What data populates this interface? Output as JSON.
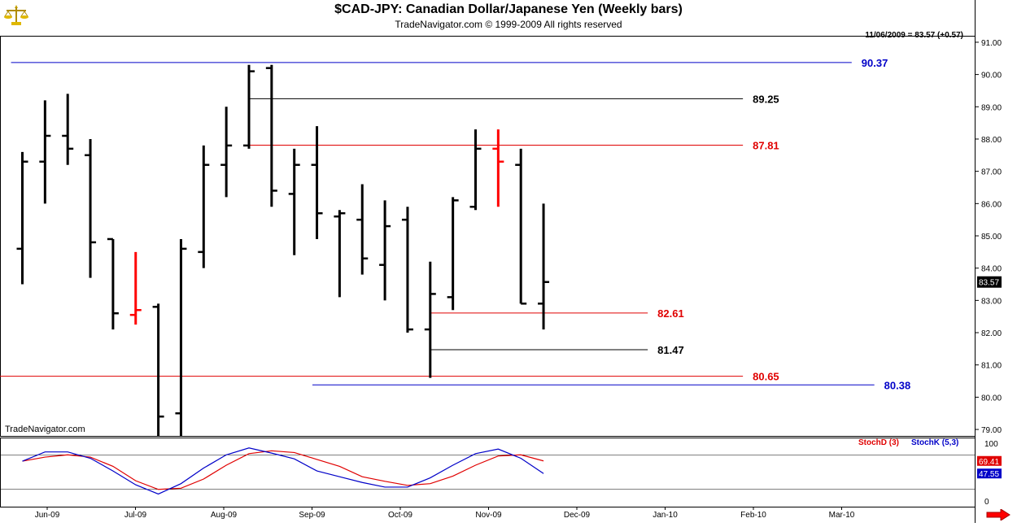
{
  "header": {
    "title": "$CAD-JPY:  Canadian Dollar/Japanese Yen  (Weekly bars)",
    "subtitle": "TradeNavigator.com © 1999-2009 All rights reserved",
    "last_quote": "11/06/2009 = 83.57 (+0.57)"
  },
  "watermark": "TradeNavigator.com",
  "icons": {
    "logo": "scales-logo-icon",
    "scroll_right": "arrow-right-icon"
  },
  "colors": {
    "bar": "#000000",
    "bar_highlight": "#ff0000",
    "level_blue": "#0000c8",
    "level_red": "#e00000",
    "level_black": "#000000",
    "stoch_d": "#e00000",
    "stoch_k": "#0000c8"
  },
  "chart_data": [
    {
      "type": "ohlc",
      "ylim": [
        78.8,
        91.2
      ],
      "y_ticks": [
        "79.00",
        "80.00",
        "81.00",
        "82.00",
        "83.00",
        "84.00",
        "85.00",
        "86.00",
        "87.00",
        "88.00",
        "89.00",
        "90.00",
        "91.00"
      ],
      "x_month_labels": [
        "Jun-09",
        "Jul-09",
        "Aug-09",
        "Sep-09",
        "Oct-09",
        "Nov-09",
        "Dec-09",
        "Jan-10",
        "Feb-10",
        "Mar-10"
      ],
      "last_price_label": "83.57",
      "bars": [
        {
          "week": 0,
          "open": 84.6,
          "high": 87.6,
          "low": 83.5,
          "close": 87.3
        },
        {
          "week": 1,
          "open": 87.3,
          "high": 89.2,
          "low": 86.0,
          "close": 88.1
        },
        {
          "week": 2,
          "open": 88.1,
          "high": 89.4,
          "low": 87.2,
          "close": 87.7
        },
        {
          "week": 3,
          "open": 87.5,
          "high": 88.0,
          "low": 83.7,
          "close": 84.8
        },
        {
          "week": 4,
          "open": 84.9,
          "high": 84.9,
          "low": 82.1,
          "close": 82.6
        },
        {
          "week": 5,
          "open": 82.55,
          "high": 84.5,
          "low": 82.25,
          "close": 82.7,
          "highlight": true
        },
        {
          "week": 6,
          "open": 82.8,
          "high": 82.9,
          "low": 78.8,
          "close": 79.4
        },
        {
          "week": 7,
          "open": 79.5,
          "high": 84.9,
          "low": 78.8,
          "close": 84.6
        },
        {
          "week": 8,
          "open": 84.5,
          "high": 87.8,
          "low": 84.0,
          "close": 87.2
        },
        {
          "week": 9,
          "open": 87.2,
          "high": 89.0,
          "low": 86.2,
          "close": 87.8
        },
        {
          "week": 10,
          "open": 87.8,
          "high": 90.3,
          "low": 87.7,
          "close": 90.1
        },
        {
          "week": 11,
          "open": 90.2,
          "high": 90.3,
          "low": 85.9,
          "close": 86.4
        },
        {
          "week": 12,
          "open": 86.3,
          "high": 87.7,
          "low": 84.4,
          "close": 87.2
        },
        {
          "week": 13,
          "open": 87.2,
          "high": 88.4,
          "low": 84.9,
          "close": 85.7
        },
        {
          "week": 14,
          "open": 85.6,
          "high": 85.8,
          "low": 83.1,
          "close": 85.7
        },
        {
          "week": 15,
          "open": 85.5,
          "high": 86.6,
          "low": 83.8,
          "close": 84.3
        },
        {
          "week": 16,
          "open": 84.1,
          "high": 86.1,
          "low": 83.0,
          "close": 85.3
        },
        {
          "week": 17,
          "open": 85.5,
          "high": 85.9,
          "low": 82.0,
          "close": 82.1
        },
        {
          "week": 18,
          "open": 82.1,
          "high": 84.2,
          "low": 80.6,
          "close": 83.2
        },
        {
          "week": 19,
          "open": 83.1,
          "high": 86.2,
          "low": 82.7,
          "close": 86.1
        },
        {
          "week": 20,
          "open": 85.9,
          "high": 88.3,
          "low": 85.8,
          "close": 87.7
        },
        {
          "week": 21,
          "open": 87.7,
          "high": 88.3,
          "low": 85.9,
          "close": 87.3,
          "highlight": true
        },
        {
          "week": 22,
          "open": 87.2,
          "high": 87.7,
          "low": 82.9,
          "close": 82.9
        },
        {
          "week": 23,
          "open": 82.9,
          "high": 86.0,
          "low": 82.1,
          "close": 83.57
        }
      ],
      "levels": [
        {
          "value": 90.37,
          "label": "90.37",
          "color": "blue",
          "from_week": -0.5,
          "to_week": 36.6
        },
        {
          "value": 89.25,
          "label": "89.25",
          "color": "black",
          "from_week": 10,
          "to_week": 31.8
        },
        {
          "value": 87.81,
          "label": "87.81",
          "color": "red",
          "from_week": 10,
          "to_week": 31.8
        },
        {
          "value": 82.61,
          "label": "82.61",
          "color": "red",
          "from_week": 18,
          "to_week": 27.6
        },
        {
          "value": 81.47,
          "label": "81.47",
          "color": "black",
          "from_week": 18,
          "to_week": 27.6
        },
        {
          "value": 80.65,
          "label": "80.65",
          "color": "red",
          "from_week": -1.2,
          "to_week": 31.8
        },
        {
          "value": 80.38,
          "label": "80.38",
          "color": "blue",
          "from_week": 12.8,
          "to_week": 37.6
        }
      ]
    },
    {
      "type": "line",
      "ylim": [
        -10,
        110
      ],
      "y_ticks": [
        "0",
        "100"
      ],
      "reference_lines": [
        20,
        80
      ],
      "legend": [
        {
          "name": "StochD (3)",
          "color": "red"
        },
        {
          "name": "StochK (5,3)",
          "color": "blue"
        }
      ],
      "series": [
        {
          "name": "StochD (3)",
          "color": "red",
          "values": [
            69,
            76,
            80,
            76,
            60,
            35,
            20,
            22,
            38,
            62,
            82,
            87,
            84,
            72,
            60,
            42,
            34,
            27,
            30,
            43,
            62,
            78,
            80,
            69.41
          ],
          "last_label": "69.41"
        },
        {
          "name": "StochK (5,3)",
          "color": "blue",
          "values": [
            69,
            85,
            85,
            74,
            52,
            28,
            12,
            30,
            57,
            80,
            92,
            83,
            73,
            52,
            42,
            32,
            24,
            24,
            40,
            62,
            82,
            90,
            74,
            47.55
          ],
          "last_label": "47.55"
        }
      ]
    }
  ]
}
